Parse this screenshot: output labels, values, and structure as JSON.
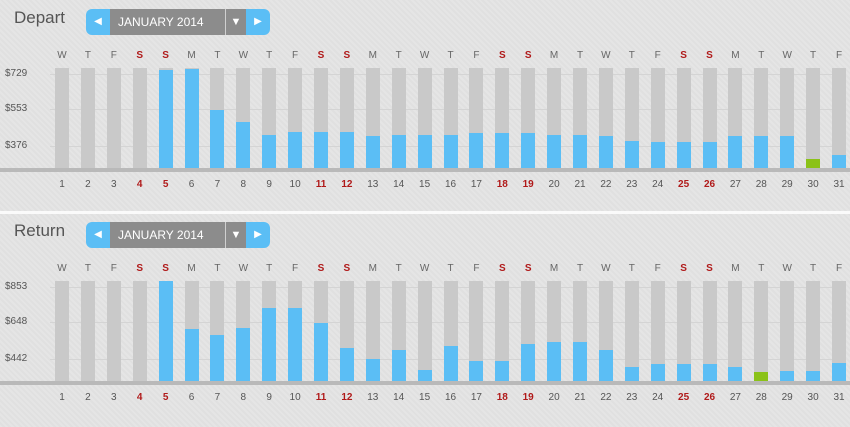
{
  "month_nav": {
    "prev_icon": "triangle-left-icon",
    "next_icon": "triangle-right-icon",
    "dropdown_icon": "caret-down-icon"
  },
  "weekdays": [
    "W",
    "T",
    "F",
    "S",
    "S",
    "M",
    "T",
    "W",
    "T",
    "F",
    "S",
    "S",
    "M",
    "T",
    "W",
    "T",
    "F",
    "S",
    "S",
    "M",
    "T",
    "W",
    "T",
    "F",
    "S",
    "S",
    "M",
    "T",
    "W",
    "T",
    "F"
  ],
  "days": [
    "1",
    "2",
    "3",
    "4",
    "5",
    "6",
    "7",
    "8",
    "9",
    "10",
    "11",
    "12",
    "13",
    "14",
    "15",
    "16",
    "17",
    "18",
    "19",
    "20",
    "21",
    "22",
    "23",
    "24",
    "25",
    "26",
    "27",
    "28",
    "29",
    "30",
    "31"
  ],
  "weekend_days": [
    4,
    5,
    11,
    12,
    18,
    19,
    25,
    26
  ],
  "colors": {
    "bar": "#5bbef5",
    "cheapest": "#8bc218",
    "slot": "#c9c9c9",
    "weekend": "#b01a1a"
  },
  "panels": [
    {
      "key": "depart",
      "title": "Depart",
      "month": "JANUARY 2014",
      "y_labels": [
        "$729",
        "$553",
        "$376"
      ],
      "y_ticks": [
        729,
        553,
        376
      ],
      "y_floor": 173,
      "fare_fractions": [
        null,
        null,
        null,
        null,
        0.98,
        0.99,
        0.58,
        0.46,
        0.33,
        0.36,
        0.36,
        0.36,
        0.32,
        0.33,
        0.33,
        0.33,
        0.35,
        0.35,
        0.35,
        0.33,
        0.33,
        0.32,
        0.27,
        0.26,
        0.26,
        0.26,
        0.32,
        0.32,
        0.32,
        0.09,
        0.13
      ],
      "cheapest_day": 30
    },
    {
      "key": "return",
      "title": "Return",
      "month": "JANUARY 2014",
      "y_labels": [
        "$853",
        "$648",
        "$442"
      ],
      "y_ticks": [
        853,
        648,
        442
      ],
      "y_floor": 237,
      "fare_fractions": [
        null,
        null,
        null,
        null,
        1.0,
        0.52,
        0.46,
        0.53,
        0.73,
        0.73,
        0.58,
        0.33,
        0.22,
        0.31,
        0.11,
        0.35,
        0.2,
        0.2,
        0.37,
        0.39,
        0.39,
        0.31,
        0.14,
        0.17,
        0.17,
        0.17,
        0.14,
        0.09,
        0.1,
        0.1,
        0.18
      ],
      "cheapest_day": 28
    }
  ]
}
